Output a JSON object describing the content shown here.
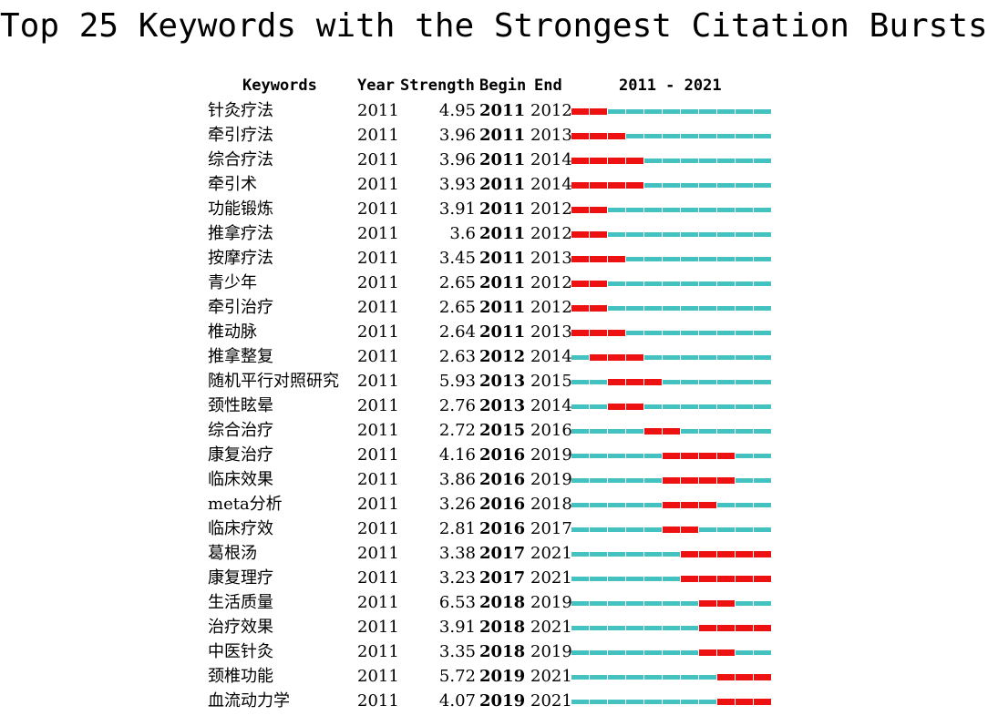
{
  "title": "Top 25 Keywords with the Strongest Citation Bursts",
  "chart_data": {
    "type": "table",
    "title": "Top 25 Keywords with the Strongest Citation Bursts",
    "columns": [
      "Keywords",
      "Year",
      "Strength",
      "Begin",
      "End",
      "2011 - 2021"
    ],
    "range_start": 2011,
    "range_end": 2021,
    "colors": {
      "burst": "#ee1111",
      "normal": "#44c1c1"
    },
    "rows": [
      {
        "keyword": "针灸疗法",
        "year": "2011",
        "strength": "4.95",
        "begin": "2011",
        "end": "2012"
      },
      {
        "keyword": "牵引疗法",
        "year": "2011",
        "strength": "3.96",
        "begin": "2011",
        "end": "2013"
      },
      {
        "keyword": "综合疗法",
        "year": "2011",
        "strength": "3.96",
        "begin": "2011",
        "end": "2014"
      },
      {
        "keyword": "牵引术",
        "year": "2011",
        "strength": "3.93",
        "begin": "2011",
        "end": "2014"
      },
      {
        "keyword": "功能锻炼",
        "year": "2011",
        "strength": "3.91",
        "begin": "2011",
        "end": "2012"
      },
      {
        "keyword": "推拿疗法",
        "year": "2011",
        "strength": "3.6",
        "begin": "2011",
        "end": "2012"
      },
      {
        "keyword": "按摩疗法",
        "year": "2011",
        "strength": "3.45",
        "begin": "2011",
        "end": "2013"
      },
      {
        "keyword": "青少年",
        "year": "2011",
        "strength": "2.65",
        "begin": "2011",
        "end": "2012"
      },
      {
        "keyword": "牵引治疗",
        "year": "2011",
        "strength": "2.65",
        "begin": "2011",
        "end": "2012"
      },
      {
        "keyword": "椎动脉",
        "year": "2011",
        "strength": "2.64",
        "begin": "2011",
        "end": "2013"
      },
      {
        "keyword": "推拿整复",
        "year": "2011",
        "strength": "2.63",
        "begin": "2012",
        "end": "2014"
      },
      {
        "keyword": "随机平行对照研究",
        "year": "2011",
        "strength": "5.93",
        "begin": "2013",
        "end": "2015"
      },
      {
        "keyword": "颈性眩晕",
        "year": "2011",
        "strength": "2.76",
        "begin": "2013",
        "end": "2014"
      },
      {
        "keyword": "综合治疗",
        "year": "2011",
        "strength": "2.72",
        "begin": "2015",
        "end": "2016"
      },
      {
        "keyword": "康复治疗",
        "year": "2011",
        "strength": "4.16",
        "begin": "2016",
        "end": "2019"
      },
      {
        "keyword": "临床效果",
        "year": "2011",
        "strength": "3.86",
        "begin": "2016",
        "end": "2019"
      },
      {
        "keyword": "meta分析",
        "year": "2011",
        "strength": "3.26",
        "begin": "2016",
        "end": "2018"
      },
      {
        "keyword": "临床疗效",
        "year": "2011",
        "strength": "2.81",
        "begin": "2016",
        "end": "2017"
      },
      {
        "keyword": "葛根汤",
        "year": "2011",
        "strength": "3.38",
        "begin": "2017",
        "end": "2021"
      },
      {
        "keyword": "康复理疗",
        "year": "2011",
        "strength": "3.23",
        "begin": "2017",
        "end": "2021"
      },
      {
        "keyword": "生活质量",
        "year": "2011",
        "strength": "6.53",
        "begin": "2018",
        "end": "2019"
      },
      {
        "keyword": "治疗效果",
        "year": "2011",
        "strength": "3.91",
        "begin": "2018",
        "end": "2021"
      },
      {
        "keyword": "中医针灸",
        "year": "2011",
        "strength": "3.35",
        "begin": "2018",
        "end": "2019"
      },
      {
        "keyword": "颈椎功能",
        "year": "2011",
        "strength": "5.72",
        "begin": "2019",
        "end": "2021"
      },
      {
        "keyword": "血流动力学",
        "year": "2011",
        "strength": "4.07",
        "begin": "2019",
        "end": "2021"
      }
    ]
  }
}
